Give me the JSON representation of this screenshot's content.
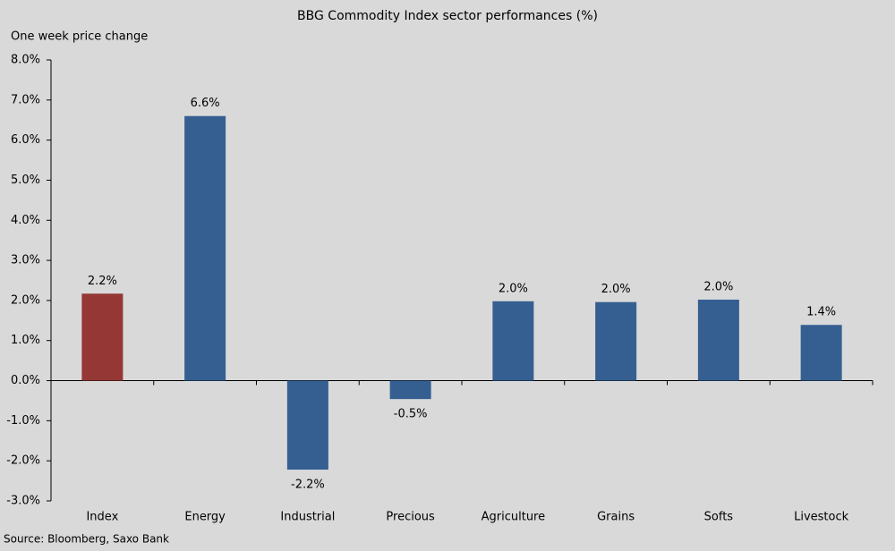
{
  "chart_data": {
    "type": "bar",
    "title": "BBG  Commodity  Index  sector performances  (%)",
    "y_label": "One week price change",
    "source": "Source: Bloomberg, Saxo Bank",
    "categories": [
      "Index",
      "Energy",
      "Industrial",
      "Precious",
      "Agriculture",
      "Grains",
      "Softs",
      "Livestock"
    ],
    "values": [
      2.17,
      6.6,
      -2.22,
      -0.46,
      1.98,
      1.96,
      2.02,
      1.39
    ],
    "value_labels": [
      "2.2%",
      "6.6%",
      "-2.2%",
      "-0.5%",
      "2.0%",
      "2.0%",
      "2.0%",
      "1.4%"
    ],
    "colors": [
      "#953735",
      "#355f91",
      "#355f91",
      "#355f91",
      "#355f91",
      "#355f91",
      "#355f91",
      "#355f91"
    ],
    "ylim": [
      -3,
      8
    ],
    "yticks": [
      {
        "value": -3,
        "label": "-3.0%"
      },
      {
        "value": -2,
        "label": "-2.0%"
      },
      {
        "value": -1,
        "label": "-1.0%"
      },
      {
        "value": 0,
        "label": "0.0%"
      },
      {
        "value": 1,
        "label": "1.0%"
      },
      {
        "value": 2,
        "label": "2.0%"
      },
      {
        "value": 3,
        "label": "3.0%"
      },
      {
        "value": 4,
        "label": "4.0%"
      },
      {
        "value": 5,
        "label": "5.0%"
      },
      {
        "value": 6,
        "label": "6.0%"
      },
      {
        "value": 7,
        "label": "7.0%"
      },
      {
        "value": 8,
        "label": "8.0%"
      }
    ],
    "grid": false
  }
}
